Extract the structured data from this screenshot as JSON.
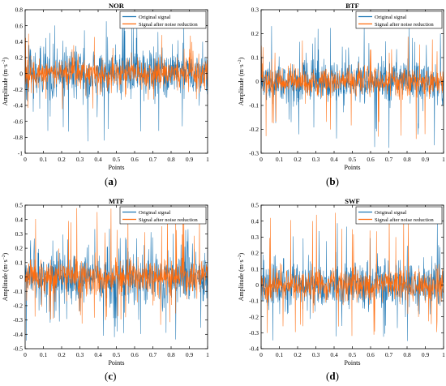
{
  "chart_data": [
    {
      "type": "line",
      "title": "NOR",
      "xlabel": "Points",
      "ylabel": "Amplitude (m·s",
      "ylabel_sup": "−2",
      "ylabel_close": ")",
      "xlim": [
        0,
        1
      ],
      "ylim": [
        -1,
        0.8
      ],
      "xticks": [
        "0",
        "0.1",
        "0.2",
        "0.3",
        "0.4",
        "0.5",
        "0.6",
        "0.7",
        "0.8",
        "0.9",
        "1"
      ],
      "yticks": [
        "-1",
        "-0.8",
        "-0.6",
        "-0.4",
        "-0.2",
        "0",
        "0.2",
        "0.4",
        "0.6",
        "0.8"
      ],
      "ytick_values": [
        -1,
        -0.8,
        -0.6,
        -0.4,
        -0.2,
        0,
        0.2,
        0.4,
        0.6,
        0.8
      ],
      "legend_position": "top-right",
      "series": [
        {
          "name": "Original signal",
          "color": "#1f77b4",
          "amplitude_typical": 0.28,
          "peak_max": 0.7,
          "peak_min": -0.85
        },
        {
          "name": "Signal after noise reduction",
          "color": "#ff6d0e",
          "amplitude_typical": 0.16,
          "peak_max": 0.5,
          "peak_min": -0.45
        }
      ],
      "caption_label": "a"
    },
    {
      "type": "line",
      "title": "BTF",
      "xlabel": "Points",
      "ylabel": "Amplitude (m·s",
      "ylabel_sup": "−2",
      "ylabel_close": ")",
      "xlim": [
        0,
        1
      ],
      "ylim": [
        -0.3,
        0.3
      ],
      "xticks": [
        "0",
        "0.1",
        "0.2",
        "0.3",
        "0.4",
        "0.5",
        "0.6",
        "0.7",
        "0.8",
        "0.9",
        "1"
      ],
      "yticks": [
        "-0.3",
        "-0.2",
        "-0.1",
        "0",
        "0.1",
        "0.2",
        "0.3"
      ],
      "ytick_values": [
        -0.3,
        -0.2,
        -0.1,
        0,
        0.1,
        0.2,
        0.3
      ],
      "legend_position": "top-right",
      "series": [
        {
          "name": "Original signal",
          "color": "#1f77b4",
          "amplitude_typical": 0.08,
          "peak_max": 0.24,
          "peak_min": -0.28
        },
        {
          "name": "Signal after noise reduction",
          "color": "#ff6d0e",
          "amplitude_typical": 0.05,
          "peak_max": 0.2,
          "peak_min": -0.25
        }
      ],
      "caption_label": "b"
    },
    {
      "type": "line",
      "title": "MTF",
      "xlabel": "Points",
      "ylabel": "Amplitude (m·s",
      "ylabel_sup": "−2",
      "ylabel_close": ")",
      "xlim": [
        0,
        1
      ],
      "ylim": [
        -0.5,
        0.5
      ],
      "xticks": [
        "0",
        "0.1",
        "0.2",
        "0.3",
        "0.4",
        "0.5",
        "0.6",
        "0.7",
        "0.8",
        "0.9",
        "1"
      ],
      "yticks": [
        "-0.5",
        "-0.4",
        "-0.3",
        "-0.2",
        "-0.1",
        "0",
        "0.1",
        "0.2",
        "0.3",
        "0.4",
        "0.5"
      ],
      "ytick_values": [
        -0.5,
        -0.4,
        -0.3,
        -0.2,
        -0.1,
        0,
        0.1,
        0.2,
        0.3,
        0.4,
        0.5
      ],
      "legend_position": "top-right",
      "series": [
        {
          "name": "Original signal",
          "color": "#1f77b4",
          "amplitude_typical": 0.16,
          "peak_max": 0.35,
          "peak_min": -0.45
        },
        {
          "name": "Signal after noise reduction",
          "color": "#ff6d0e",
          "amplitude_typical": 0.11,
          "peak_max": 0.48,
          "peak_min": -0.35
        }
      ],
      "caption_label": "c"
    },
    {
      "type": "line",
      "title": "SWF",
      "xlabel": "Points",
      "ylabel": "Amplitude (m·s",
      "ylabel_sup": "−2",
      "ylabel_close": ")",
      "xlim": [
        0,
        1
      ],
      "ylim": [
        -0.4,
        0.5
      ],
      "xticks": [
        "0",
        "0.1",
        "0.2",
        "0.3",
        "0.4",
        "0.5",
        "0.6",
        "0.7",
        "0.8",
        "0.9",
        "1"
      ],
      "yticks": [
        "-0.4",
        "-0.3",
        "-0.2",
        "-0.1",
        "0",
        "0.1",
        "0.2",
        "0.3",
        "0.4",
        "0.5"
      ],
      "ytick_values": [
        -0.4,
        -0.3,
        -0.2,
        -0.1,
        0,
        0.1,
        0.2,
        0.3,
        0.4,
        0.5
      ],
      "legend_position": "top-right",
      "series": [
        {
          "name": "Original signal",
          "color": "#1f77b4",
          "amplitude_typical": 0.14,
          "peak_max": 0.4,
          "peak_min": -0.36
        },
        {
          "name": "Signal after noise reduction",
          "color": "#ff6d0e",
          "amplitude_typical": 0.09,
          "peak_max": 0.47,
          "peak_min": -0.32
        }
      ],
      "caption_label": "d"
    }
  ]
}
